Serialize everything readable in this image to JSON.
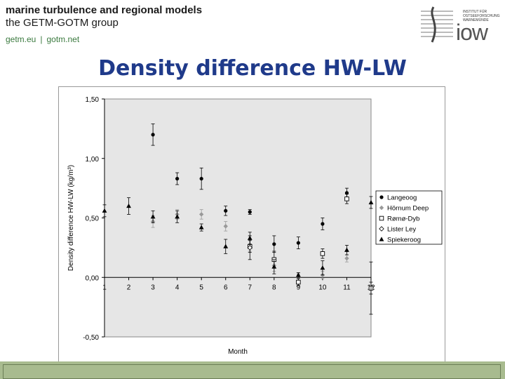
{
  "header": {
    "title": "marine turbulence and regional models",
    "subtitle": "the GETM-GOTM group",
    "links": [
      "getm.eu",
      "gotm.net"
    ],
    "link_separator": "|",
    "logo_text": "INSTITUT FÜR\nOSTSEEFORSCHUNG\nWARNEMÜNDE",
    "logo_word": "iow"
  },
  "slide": {
    "title": "Density difference HW-LW"
  },
  "colors": {
    "title": "#1f3a8a",
    "plot_background": "#e6e6e6",
    "bottom_bar": "#a8bb8f",
    "links": "#3b7a3f"
  },
  "chart_data": {
    "type": "scatter",
    "title": "",
    "xlabel": "Month",
    "ylabel": "Density difference HW-LW (kg/m³)",
    "xlim": [
      1,
      12
    ],
    "ylim": [
      -0.5,
      1.5
    ],
    "xticks": [
      "1",
      "2",
      "3",
      "4",
      "5",
      "6",
      "7",
      "8",
      "9",
      "10",
      "11",
      "12"
    ],
    "yticks": [
      "1,50",
      "1,00",
      "0,50",
      "0,00",
      "-0,50"
    ],
    "ytick_values": [
      1.5,
      1.0,
      0.5,
      0.0,
      -0.5
    ],
    "grid": false,
    "legend_position": "right",
    "series": [
      {
        "name": "Langeoog",
        "marker": "circle",
        "color": "#000000",
        "points": [
          [
            3,
            1.2,
            0.09
          ],
          [
            4,
            0.83,
            0.05
          ],
          [
            5,
            0.83,
            0.09
          ],
          [
            6,
            0.56,
            0.04
          ],
          [
            7,
            0.55,
            0.02
          ],
          [
            8,
            0.28,
            0.07
          ],
          [
            9,
            0.29,
            0.05
          ],
          [
            10,
            0.45,
            0.05
          ],
          [
            11,
            0.71,
            0.04
          ]
        ]
      },
      {
        "name": "Hörnum Deep",
        "marker": "diamond",
        "color": "#999999",
        "points": [
          [
            3,
            0.47,
            0.05
          ],
          [
            4,
            0.53,
            0.04
          ],
          [
            5,
            0.53,
            0.04
          ],
          [
            6,
            0.43,
            0.04
          ],
          [
            7,
            0.27,
            0.05
          ],
          [
            8,
            0.1,
            0.05
          ],
          [
            9,
            0.0,
            0.03
          ],
          [
            10,
            0.02,
            0.03
          ],
          [
            11,
            0.16,
            0.03
          ]
        ]
      },
      {
        "name": "Rømø-Dyb",
        "marker": "square-open",
        "color": "#000000",
        "points": [
          [
            7,
            0.26,
            0.05
          ],
          [
            8,
            0.15,
            0.07
          ],
          [
            9,
            -0.04,
            0.03
          ],
          [
            10,
            0.2,
            0.04
          ],
          [
            11,
            0.66,
            0.04
          ],
          [
            12,
            -0.09,
            0.05
          ]
        ]
      },
      {
        "name": "Lister Ley",
        "marker": "diamond-open",
        "color": "#000000",
        "points": [
          [
            7,
            0.25,
            0.1
          ]
        ]
      },
      {
        "name": "Spiekeroog",
        "marker": "triangle",
        "color": "#000000",
        "points": [
          [
            1,
            0.56,
            0.05
          ],
          [
            2,
            0.6,
            0.07
          ],
          [
            3,
            0.51,
            0.05
          ],
          [
            4,
            0.51,
            0.05
          ],
          [
            5,
            0.42,
            0.03
          ],
          [
            6,
            0.26,
            0.06
          ],
          [
            7,
            0.33,
            0.05
          ],
          [
            8,
            0.09,
            0.06
          ],
          [
            9,
            0.02,
            0.02
          ],
          [
            10,
            0.08,
            0.06
          ],
          [
            11,
            0.23,
            0.04
          ],
          [
            12,
            0.63,
            0.05
          ]
        ]
      }
    ],
    "errorbar_extra": [
      [
        12,
        -0.09,
        0.22
      ]
    ]
  }
}
